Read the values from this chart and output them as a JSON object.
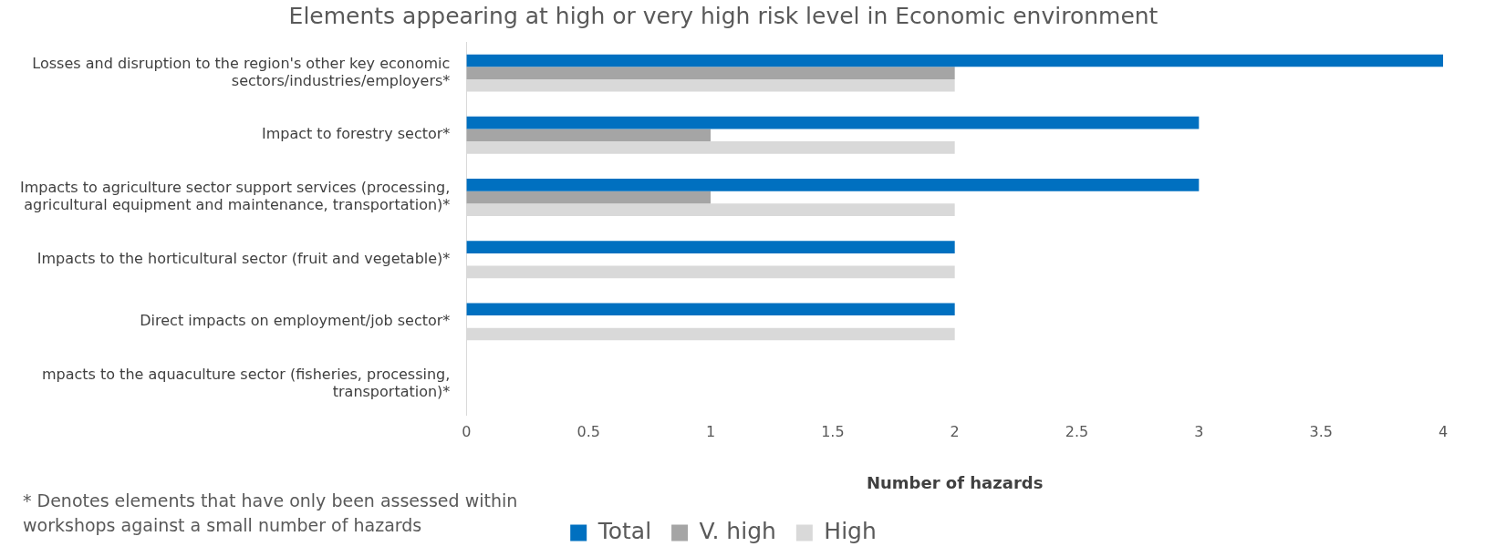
{
  "chart_data": {
    "type": "bar",
    "orientation": "horizontal",
    "title": "Elements appearing at high or very high risk level in Economic environment",
    "xlabel": "Number of hazards",
    "categories": [
      "Losses and disruption to the region's other key economic sectors/industries/employers*",
      "Impact to forestry sector*",
      "Impacts to agriculture sector support services (processing, agricultural equipment and maintenance, transportation)*",
      "Impacts to the horticultural sector (fruit and vegetable)*",
      "Direct impacts on employment/job sector*",
      "mpacts to the aquaculture sector (fisheries, processing, transportation)*"
    ],
    "series": [
      {
        "name": "Total",
        "color": "#0070c0",
        "values": [
          4,
          3,
          3,
          2,
          2,
          0
        ]
      },
      {
        "name": "V. high",
        "color": "#a5a5a5",
        "values": [
          2,
          1,
          1,
          0,
          0,
          0
        ]
      },
      {
        "name": "High",
        "color": "#d9d9d9",
        "values": [
          2,
          2,
          2,
          2,
          2,
          0
        ]
      }
    ],
    "xlim": [
      0,
      4
    ],
    "xticks": [
      0,
      0.5,
      1,
      1.5,
      2,
      2.5,
      3,
      3.5,
      4
    ],
    "grid": false,
    "legend": "bottom",
    "annotations": [
      "* Denotes elements that have only been assessed within workshops against a small number of hazards"
    ]
  }
}
